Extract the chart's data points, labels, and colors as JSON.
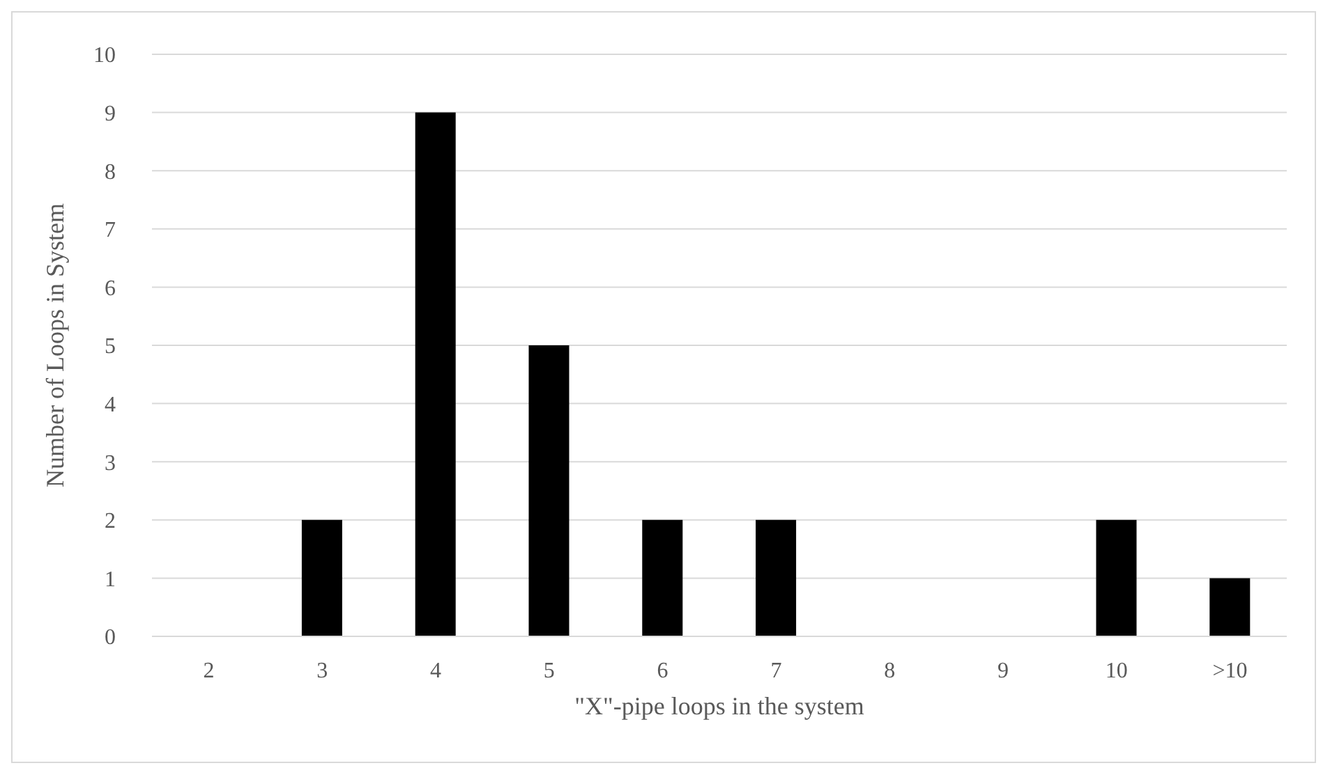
{
  "chart_data": {
    "type": "bar",
    "xlabel": "\"X\"-pipe loops in the system",
    "ylabel": "Number of Loops in System",
    "categories": [
      "2",
      "3",
      "4",
      "5",
      "6",
      "7",
      "8",
      "9",
      "10",
      ">10"
    ],
    "values": [
      0,
      2,
      9,
      5,
      2,
      2,
      0,
      0,
      2,
      1
    ],
    "color": "#000000",
    "ylim": [
      0,
      10
    ],
    "yticks": [
      0,
      1,
      2,
      3,
      4,
      5,
      6,
      7,
      8,
      9,
      10
    ],
    "grid": "y",
    "legend": false
  }
}
